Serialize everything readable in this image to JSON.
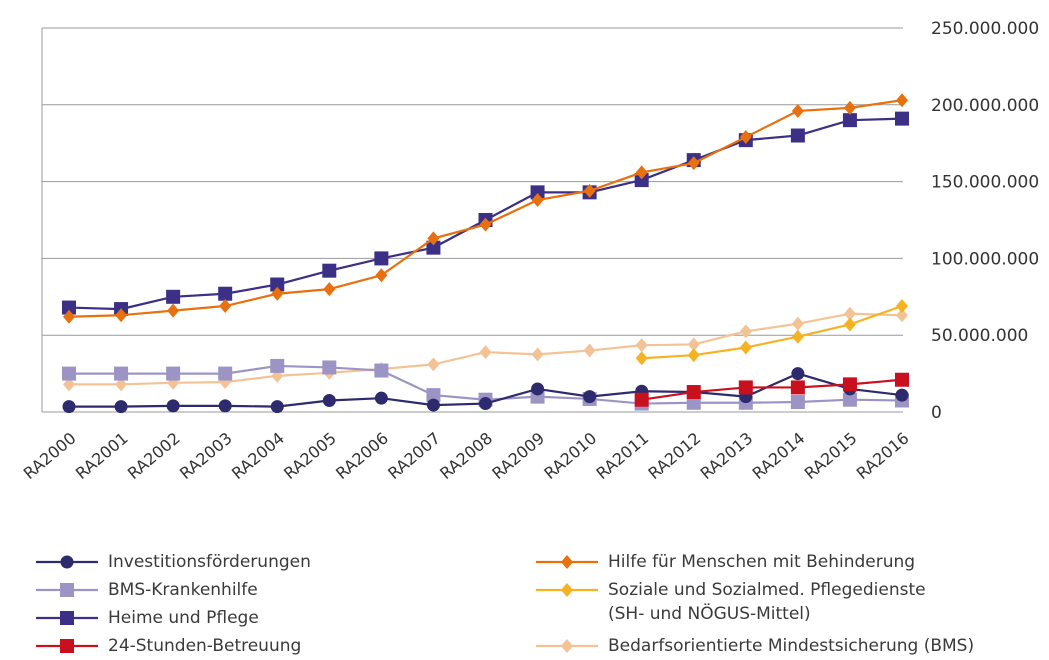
{
  "chart_data": {
    "type": "line",
    "categories": [
      "RA2000",
      "RA2001",
      "RA2002",
      "RA2003",
      "RA2004",
      "RA2005",
      "RA2006",
      "RA2007",
      "RA2008",
      "RA2009",
      "RA2010",
      "RA2011",
      "RA2012",
      "RA2013",
      "RA2014",
      "RA2015",
      "RA2016"
    ],
    "ylim": [
      0,
      250000000
    ],
    "yticks": [
      0,
      50000000,
      100000000,
      150000000,
      200000000,
      250000000
    ],
    "ytick_labels": [
      "0",
      "50.000.000",
      "100.000.000",
      "150.000.000",
      "200.000.000",
      "250.000.000"
    ],
    "y_axis_position": "right",
    "grid": true,
    "legend_position": "bottom",
    "series": [
      {
        "name": "Investitionsförderungen",
        "color": "#2e2a6e",
        "marker": "circle",
        "values": [
          3500000,
          3500000,
          4000000,
          4000000,
          3500000,
          7500000,
          9000000,
          4500000,
          5500000,
          15000000,
          10000000,
          13500000,
          13000000,
          10000000,
          25000000,
          15000000,
          11000000
        ]
      },
      {
        "name": "BMS-Krankenhilfe",
        "color": "#9d94c6",
        "marker": "square",
        "values": [
          25000000,
          25000000,
          25000000,
          25000000,
          30000000,
          29000000,
          27000000,
          11000000,
          8000000,
          10000000,
          8500000,
          5500000,
          6000000,
          6000000,
          6500000,
          8000000,
          7500000
        ]
      },
      {
        "name": "Heime und Pflege",
        "color": "#3c2f86",
        "marker": "square",
        "values": [
          68000000,
          67000000,
          75000000,
          77000000,
          83000000,
          92000000,
          100000000,
          107000000,
          125000000,
          143000000,
          143000000,
          151000000,
          164000000,
          177000000,
          180000000,
          190000000,
          191000000
        ]
      },
      {
        "name": "24-Stunden-Betreuung",
        "color": "#c8101e",
        "marker": "square",
        "values": [
          null,
          null,
          null,
          null,
          null,
          null,
          null,
          null,
          null,
          null,
          null,
          8000000,
          13000000,
          16000000,
          16000000,
          18000000,
          21000000
        ]
      },
      {
        "name": "Hilfe für Menschen mit Behinderung",
        "color": "#e8700e",
        "marker": "diamond",
        "values": [
          62000000,
          63000000,
          66000000,
          69000000,
          77000000,
          80000000,
          89000000,
          113000000,
          122000000,
          138000000,
          144000000,
          156000000,
          162000000,
          179000000,
          196000000,
          198000000,
          203000000
        ]
      },
      {
        "name": "Soziale und Sozialmed. Pflegedienste\n(SH- und NÖGUS-Mittel)",
        "color": "#f5b324",
        "marker": "diamond",
        "values": [
          null,
          null,
          null,
          null,
          null,
          null,
          null,
          null,
          null,
          null,
          null,
          35000000,
          37000000,
          42000000,
          49000000,
          57000000,
          69000000
        ]
      },
      {
        "name": "Bedarfsorientierte Mindestsicherung (BMS)",
        "color": "#f3c395",
        "marker": "diamond",
        "values": [
          18000000,
          18000000,
          19000000,
          19500000,
          23500000,
          25500000,
          28000000,
          31000000,
          39000000,
          37500000,
          40000000,
          43500000,
          44000000,
          52500000,
          57500000,
          64000000,
          63000000
        ]
      }
    ]
  }
}
